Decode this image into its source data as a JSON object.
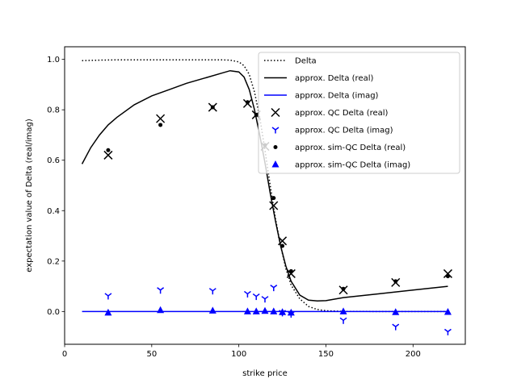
{
  "chart_data": {
    "type": "scatter",
    "xlabel": "strike price",
    "ylabel": "expectation value of Delta (real/imag)",
    "xlim": [
      0,
      230
    ],
    "ylim": [
      -0.13,
      1.05
    ],
    "xticks": [
      0,
      50,
      100,
      150,
      200
    ],
    "yticks": [
      0.0,
      0.2,
      0.4,
      0.6,
      0.8,
      1.0
    ],
    "xtick_labels": [
      "0",
      "50",
      "100",
      "150",
      "200"
    ],
    "ytick_labels": [
      "0.0",
      "0.2",
      "0.4",
      "0.6",
      "0.8",
      "1.0"
    ],
    "legend_position": "top-right",
    "grid": false,
    "series": [
      {
        "name": "Delta",
        "kind": "line",
        "style": "dotted",
        "color": "#000000",
        "x": [
          10,
          20,
          30,
          40,
          50,
          60,
          70,
          80,
          90,
          95,
          100,
          103,
          106,
          109,
          112,
          115,
          118,
          121,
          124,
          127,
          130,
          135,
          140,
          145,
          150,
          160,
          180,
          200,
          220
        ],
        "y": [
          0.995,
          0.997,
          0.998,
          0.998,
          0.998,
          0.998,
          0.998,
          0.998,
          0.998,
          0.997,
          0.99,
          0.975,
          0.94,
          0.87,
          0.77,
          0.64,
          0.5,
          0.37,
          0.26,
          0.17,
          0.105,
          0.05,
          0.02,
          0.008,
          0.003,
          0.0005,
          0.0,
          0.0,
          0.0
        ]
      },
      {
        "name": "approx. Delta (real)",
        "kind": "line",
        "style": "solid",
        "color": "#000000",
        "x": [
          10,
          15,
          20,
          25,
          30,
          40,
          50,
          60,
          70,
          80,
          90,
          95,
          100,
          103,
          106,
          109,
          112,
          115,
          118,
          121,
          124,
          127,
          130,
          135,
          140,
          145,
          150,
          160,
          180,
          200,
          220
        ],
        "y": [
          0.585,
          0.65,
          0.7,
          0.74,
          0.77,
          0.82,
          0.855,
          0.88,
          0.905,
          0.925,
          0.945,
          0.955,
          0.95,
          0.93,
          0.88,
          0.8,
          0.7,
          0.59,
          0.47,
          0.36,
          0.26,
          0.18,
          0.12,
          0.065,
          0.045,
          0.042,
          0.043,
          0.055,
          0.07,
          0.085,
          0.1
        ]
      },
      {
        "name": "approx. Delta (imag)",
        "kind": "line",
        "style": "solid",
        "color": "#0000ff",
        "x": [
          10,
          220
        ],
        "y": [
          0.0,
          0.0
        ]
      },
      {
        "name": "approx. QC Delta (real)",
        "kind": "scatter",
        "marker": "x",
        "color": "#000000",
        "x": [
          25,
          55,
          85,
          105,
          110,
          115,
          120,
          125,
          130,
          160,
          190,
          220
        ],
        "y": [
          0.62,
          0.765,
          0.81,
          0.825,
          0.78,
          0.655,
          0.42,
          0.28,
          0.15,
          0.085,
          0.115,
          0.15
        ]
      },
      {
        "name": "approx. QC Delta (imag)",
        "kind": "scatter",
        "marker": "tri_down",
        "color": "#0000ff",
        "x": [
          25,
          55,
          85,
          105,
          110,
          115,
          120,
          125,
          130,
          160,
          190,
          220
        ],
        "y": [
          0.062,
          0.085,
          0.082,
          0.07,
          0.06,
          0.05,
          0.095,
          -0.005,
          -0.01,
          -0.035,
          -0.06,
          -0.08
        ]
      },
      {
        "name": "approx. sim-QC Delta (real)",
        "kind": "scatter",
        "marker": "dot",
        "color": "#000000",
        "x": [
          25,
          55,
          85,
          105,
          110,
          115,
          120,
          125,
          130,
          160,
          190,
          220
        ],
        "y": [
          0.64,
          0.74,
          0.81,
          0.83,
          0.78,
          0.66,
          0.45,
          0.26,
          0.16,
          0.09,
          0.12,
          0.14
        ]
      },
      {
        "name": "approx. sim-QC Delta (imag)",
        "kind": "scatter",
        "marker": "triangle_up",
        "color": "#0000ff",
        "x": [
          25,
          55,
          85,
          105,
          110,
          115,
          120,
          125,
          130,
          160,
          190,
          220
        ],
        "y": [
          -0.005,
          0.005,
          0.003,
          0.0,
          0.0,
          0.002,
          0.0,
          -0.003,
          -0.005,
          0.0,
          -0.003,
          -0.002
        ]
      }
    ]
  }
}
